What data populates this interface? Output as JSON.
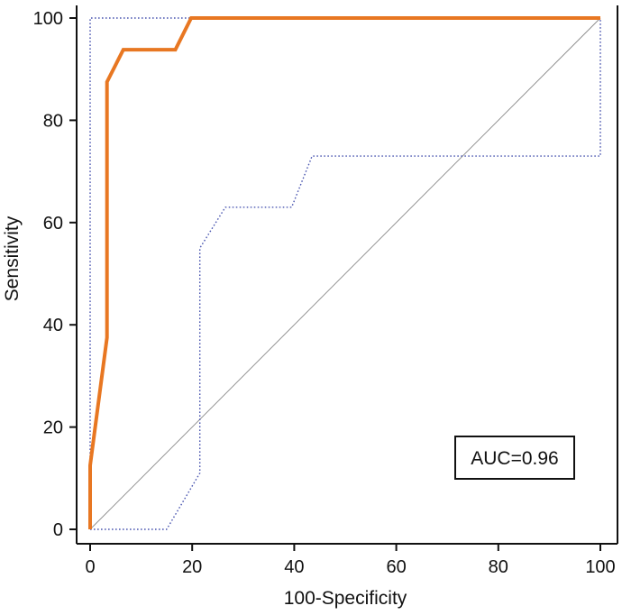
{
  "chart_data": {
    "type": "line",
    "title": "",
    "xlabel": "100-Specificity",
    "ylabel": "Sensitivity",
    "xlim": [
      0,
      100
    ],
    "ylim": [
      0,
      100
    ],
    "x_ticks": [
      "0",
      "20",
      "40",
      "60",
      "80",
      "100"
    ],
    "y_ticks": [
      "0",
      "20",
      "40",
      "60",
      "80",
      "100"
    ],
    "grid": false,
    "annotation": "AUC=0.96",
    "annotation_placement": "bottom-right",
    "series": [
      {
        "role": "roc-curve",
        "style": "solid-thick",
        "color": "#e87722",
        "x": [
          0,
          0,
          3.3,
          3.3,
          6.5,
          16.7,
          19.8,
          100
        ],
        "y": [
          0,
          12.5,
          37.5,
          87.5,
          93.8,
          93.8,
          100,
          100
        ]
      },
      {
        "role": "confidence-upper",
        "style": "dotted",
        "color": "#4a56b0",
        "x": [
          0,
          0,
          5,
          20,
          100
        ],
        "y": [
          0,
          100,
          100,
          100,
          100
        ]
      },
      {
        "role": "confidence-lower",
        "style": "dotted",
        "color": "#4a56b0",
        "x": [
          0,
          15,
          21.5,
          21.5,
          26.5,
          39.5,
          43.5,
          100,
          100
        ],
        "y": [
          0,
          0,
          11,
          55,
          63,
          63,
          73,
          73,
          100
        ]
      },
      {
        "role": "reference-diagonal",
        "style": "thin",
        "color": "#8a8a8a",
        "x": [
          0,
          100
        ],
        "y": [
          0,
          100
        ]
      }
    ]
  }
}
